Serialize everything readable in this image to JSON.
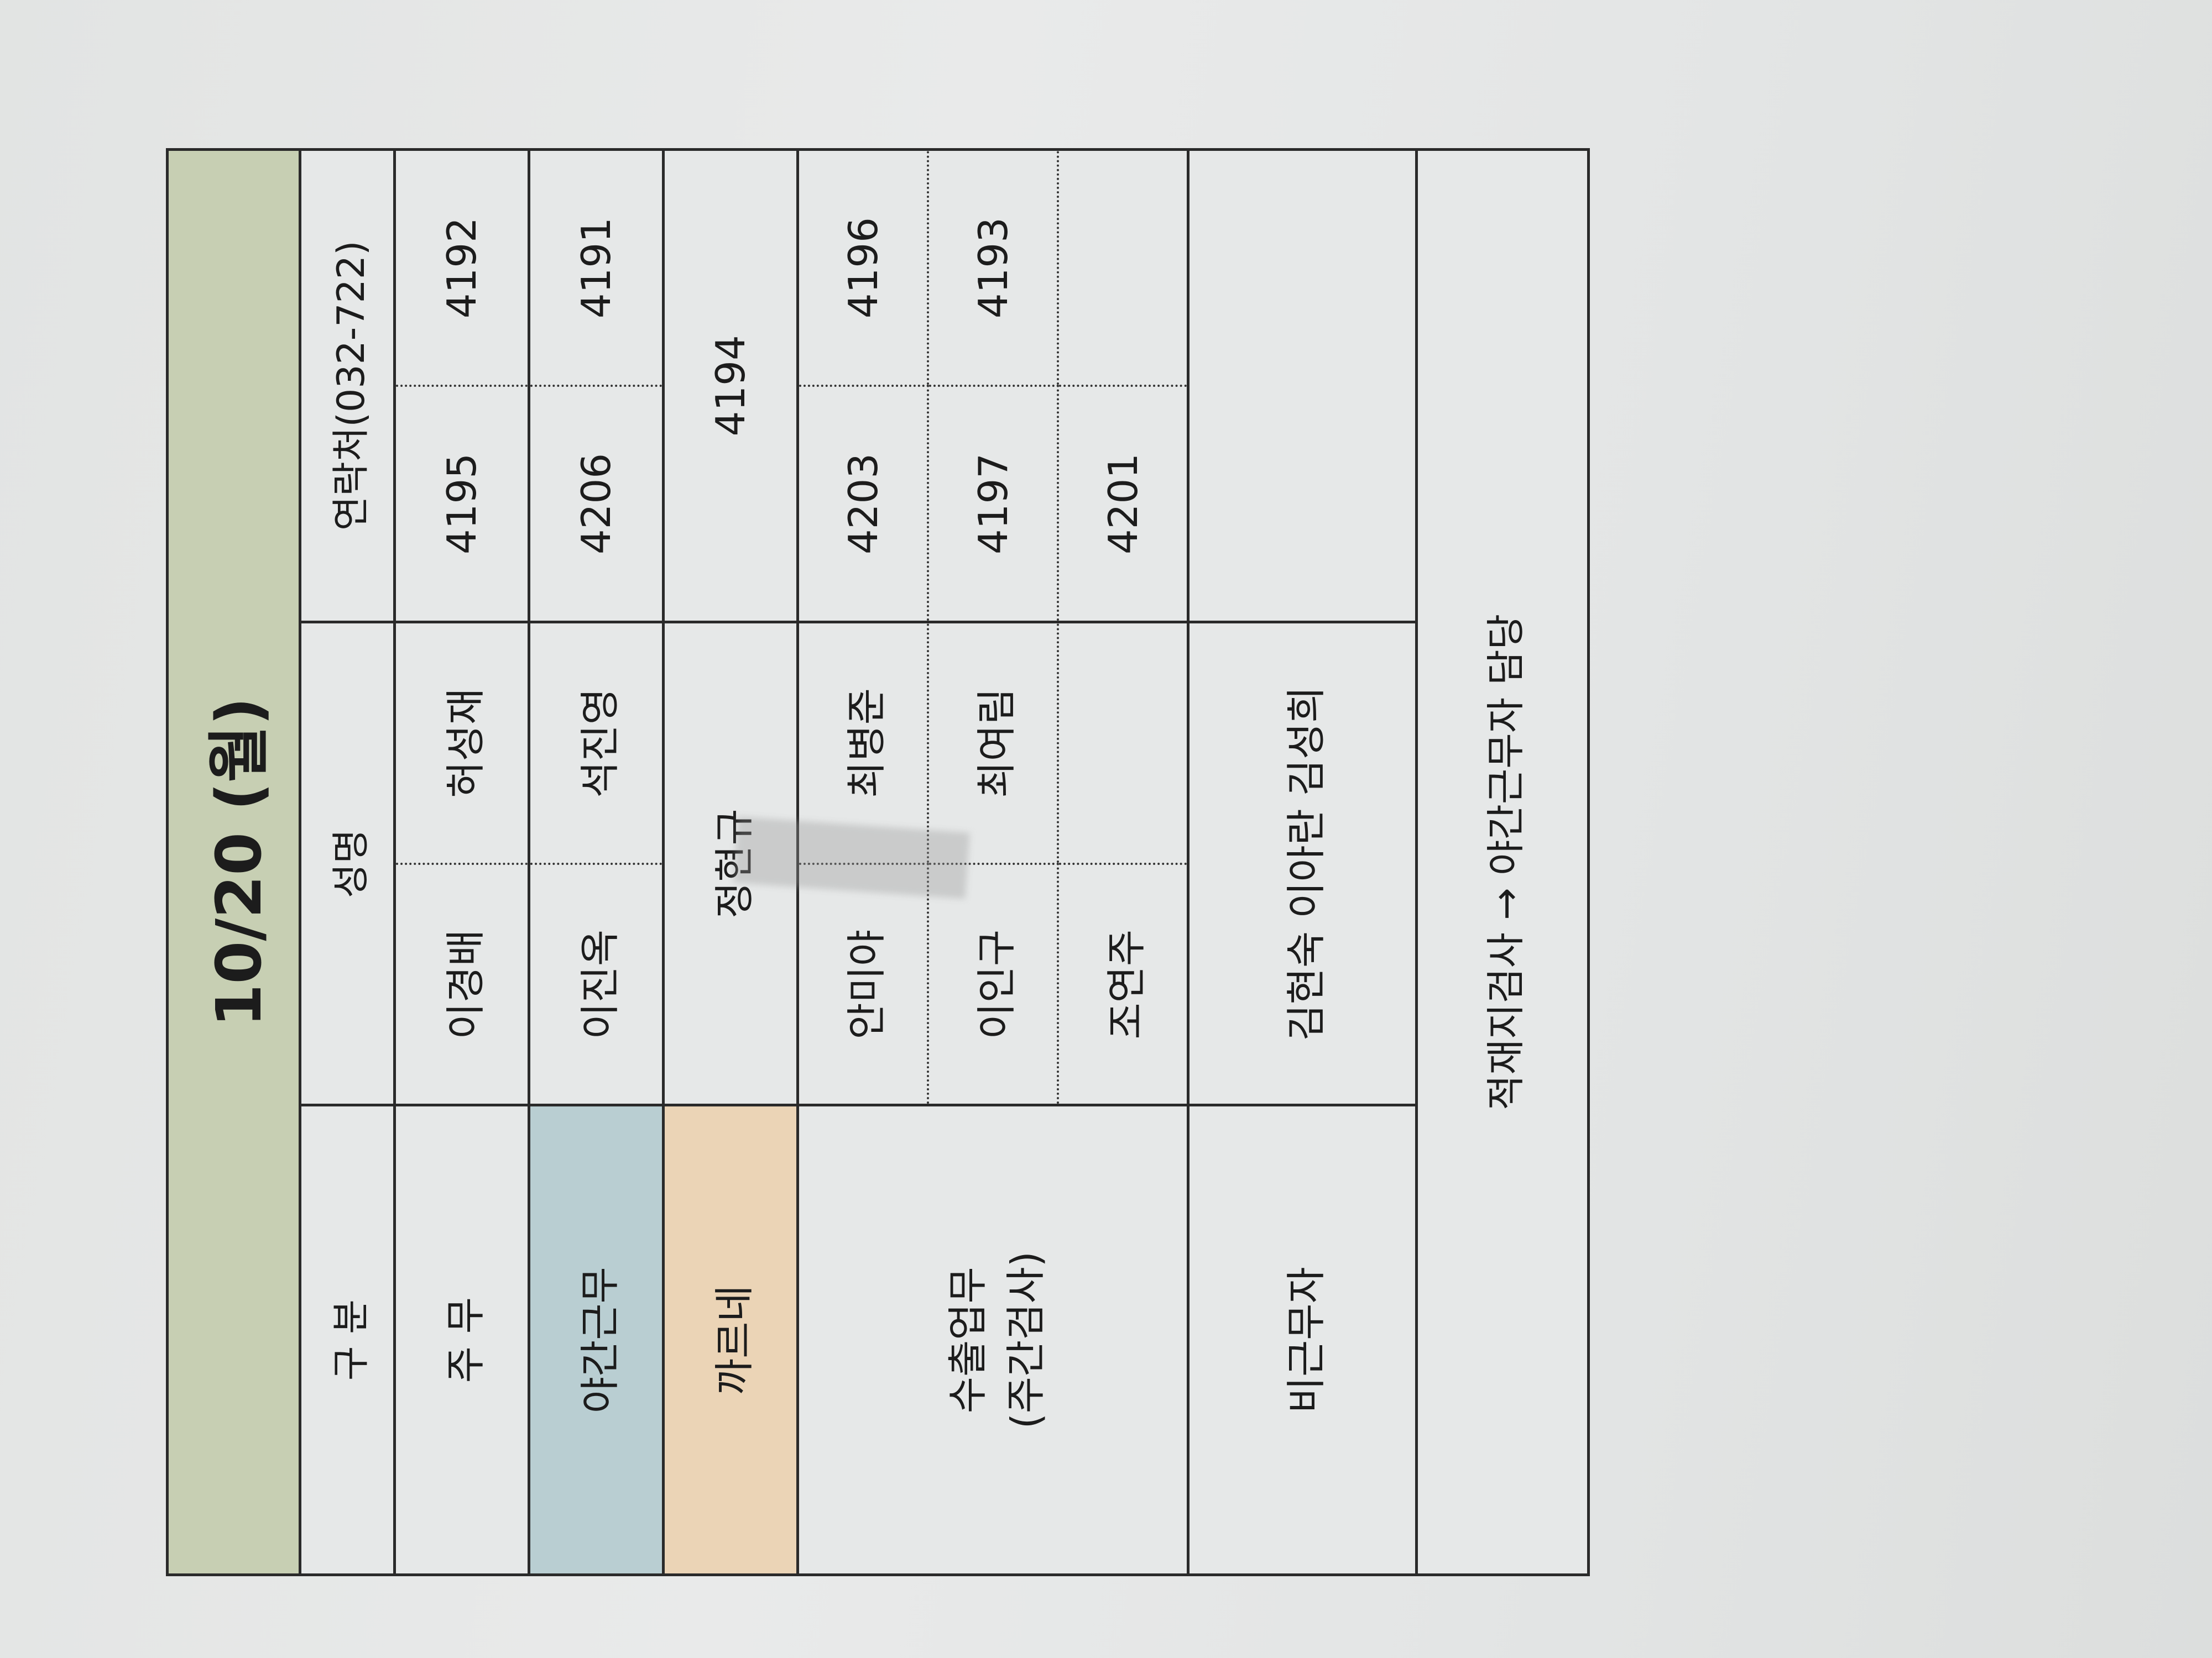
{
  "title": "10/20 (월)",
  "header": {
    "category": "구 분",
    "name": "성명",
    "contact": "연락처(032-722)"
  },
  "rows": {
    "day": {
      "label": "주 무",
      "names": [
        "이경배",
        "허성재"
      ],
      "contacts": [
        "4195",
        "4192"
      ]
    },
    "night": {
      "label": "야간근무",
      "names": [
        "이진옥",
        "석진영"
      ],
      "contacts": [
        "4206",
        "4191"
      ],
      "color": "#b9ced2"
    },
    "carnet": {
      "label": "까르네",
      "name": "정현규",
      "contact": "4194",
      "color": "#ebd4b6"
    },
    "export": {
      "label_line1": "수출업무",
      "label_line2": "(주간검사)",
      "entries": [
        {
          "names": [
            "안미야",
            "최병준"
          ],
          "contacts": [
            "4203",
            "4196"
          ]
        },
        {
          "names": [
            "이인구",
            "최여림"
          ],
          "contacts": [
            "4197",
            "4193"
          ]
        },
        {
          "names": [
            "조연주",
            ""
          ],
          "contacts": [
            "4201",
            ""
          ]
        }
      ]
    },
    "off_duty": {
      "label": "비근무자",
      "names": "김현숙 이아란 김성희"
    }
  },
  "note": "적재지검사 → 야간근무자 담당",
  "colors": {
    "title_bg": "#c7cfb3"
  }
}
